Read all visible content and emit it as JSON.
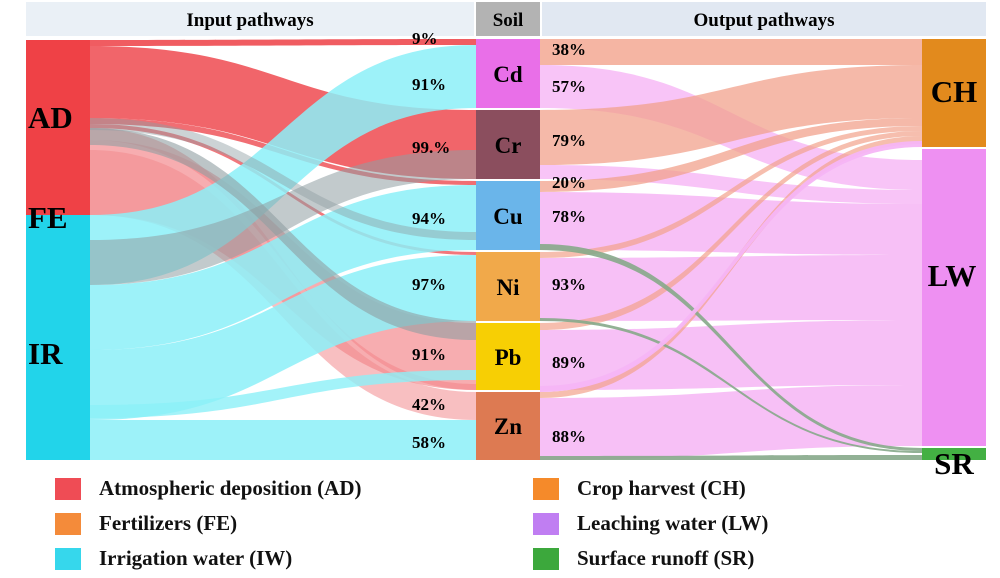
{
  "headers": {
    "input": "Input pathways",
    "soil": "Soil",
    "output": "Output pathways"
  },
  "sources": [
    {
      "id": "AD",
      "label": "AD",
      "color": "#ef4146"
    },
    {
      "id": "FE",
      "label": "FE",
      "color": "#ef4146"
    },
    {
      "id": "IR",
      "label": "IR",
      "color": "#22d4ea"
    }
  ],
  "metals": [
    {
      "id": "Cd",
      "label": "Cd",
      "color": "#e96fe8"
    },
    {
      "id": "Cr",
      "label": "Cr",
      "color": "#8b4e5e"
    },
    {
      "id": "Cu",
      "label": "Cu",
      "color": "#6ab5ea"
    },
    {
      "id": "Ni",
      "label": "Ni",
      "color": "#f1a94a"
    },
    {
      "id": "Pb",
      "label": "Pb",
      "color": "#f7cf04"
    },
    {
      "id": "Zn",
      "label": "Zn",
      "color": "#dd7a52"
    }
  ],
  "outputs": [
    {
      "id": "CH",
      "label": "CH",
      "color": "#e28a1d"
    },
    {
      "id": "LW",
      "label": "LW",
      "color": "#ee90f2"
    },
    {
      "id": "SR",
      "label": "SR",
      "color": "#43b043"
    }
  ],
  "input_percent_labels": [
    "9%",
    "91%",
    "99.%",
    "94%",
    "97%",
    "91%",
    "42%",
    "58%"
  ],
  "output_percent_labels": [
    "38%",
    "57%",
    "79%",
    "20%",
    "78%",
    "93%",
    "89%",
    "88%"
  ],
  "flow_colors": {
    "ad_flow": "#ee4a50",
    "fe_flow": "#f38a8e",
    "iw_flow": "#8cf0f8",
    "gray_flow": "#8f9ea2",
    "ch_flow": "#f2a28c",
    "lw_flow": "#f6b5f5",
    "sr_flow": "#86a98a"
  },
  "legend": [
    {
      "label": "Atmospheric deposition (AD)",
      "color": "#ef4c55"
    },
    {
      "label": "Fertilizers (FE)",
      "color": "#f48b3a"
    },
    {
      "label": "Irrigation water (IW)",
      "color": "#36d7ec"
    },
    {
      "label": "Crop harvest (CH)",
      "color": "#f58a2a"
    },
    {
      "label": "Leaching water (LW)",
      "color": "#c07ef2"
    },
    {
      "label": "Surface runoff (SR)",
      "color": "#3ca83c"
    }
  ]
}
